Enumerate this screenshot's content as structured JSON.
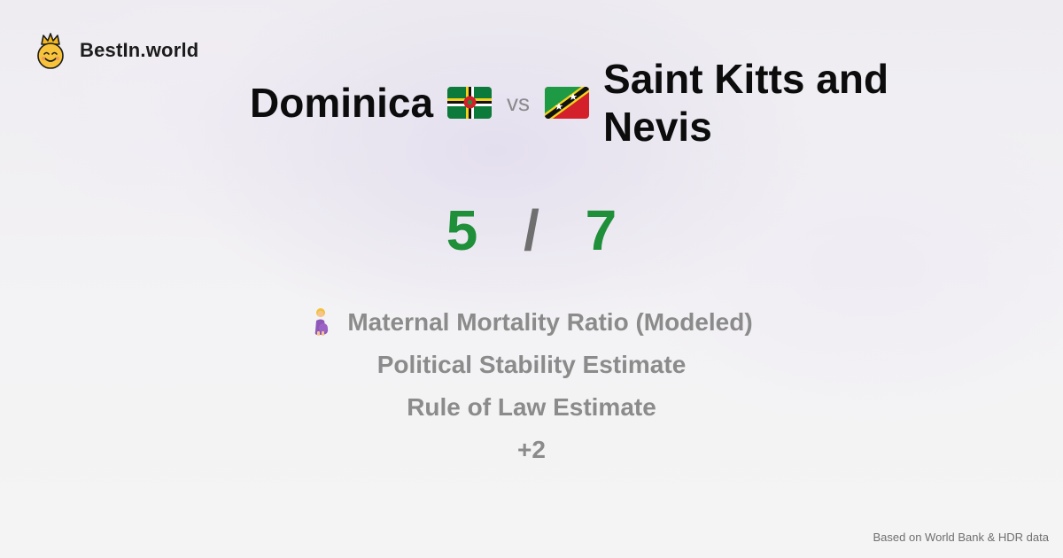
{
  "brand": {
    "name": "BestIn.world",
    "logo_icon": "crown-smiley-icon"
  },
  "comparison": {
    "country_a": "Dominica",
    "country_a_flag": "dominica-flag-icon",
    "vs_label": "vs",
    "country_b": "Saint Kitts and Nevis",
    "country_b_flag": "saint-kitts-and-nevis-flag-icon"
  },
  "score": {
    "a": "5",
    "separator": "/",
    "b": "7",
    "color": "#1f8f3a"
  },
  "metrics": [
    {
      "label": "Maternal Mortality Ratio (Modeled)",
      "icon": "pregnant-woman-icon"
    },
    {
      "label": "Political Stability Estimate"
    },
    {
      "label": "Rule of Law Estimate"
    },
    {
      "label": "+2"
    }
  ],
  "footer": {
    "source": "Based on World Bank & HDR data"
  }
}
